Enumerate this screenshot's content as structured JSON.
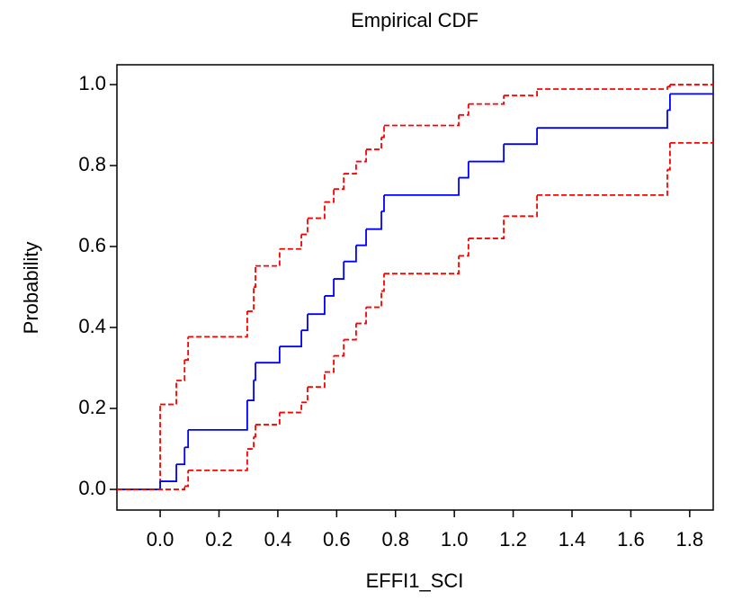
{
  "chart_data": {
    "type": "step",
    "title": "Empirical CDF",
    "x_label": "EFFI1_SCI",
    "y_label": "Probability",
    "xlim": [
      -0.147,
      1.88
    ],
    "ylim": [
      -0.051,
      1.049
    ],
    "xticks": [
      {
        "value": 0,
        "label": "0.0"
      },
      {
        "value": 0.2,
        "label": "0.2"
      },
      {
        "value": 0.4,
        "label": "0.4"
      },
      {
        "value": 0.6,
        "label": "0.6"
      },
      {
        "value": 0.8,
        "label": "0.8"
      },
      {
        "value": 1,
        "label": "1.0"
      },
      {
        "value": 1.2,
        "label": "1.2"
      },
      {
        "value": 1.4,
        "label": "1.4"
      },
      {
        "value": 1.6,
        "label": "1.6"
      },
      {
        "value": 1.8,
        "label": "1.8"
      }
    ],
    "yticks": [
      {
        "value": 0,
        "label": "0.0"
      },
      {
        "value": 0.2,
        "label": "0.2"
      },
      {
        "value": 0.4,
        "label": "0.4"
      },
      {
        "value": 0.6,
        "label": "0.6"
      },
      {
        "value": 0.8,
        "label": "0.8"
      },
      {
        "value": 1,
        "label": "1.0"
      }
    ],
    "series": [
      {
        "color": "#ff0000",
        "dashed": true,
        "x": [
          -0.147,
          0,
          0.055,
          0.083,
          0.095,
          0.296,
          0.318,
          0.324,
          0.406,
          0.48,
          0.501,
          0.559,
          0.59,
          0.624,
          0.666,
          0.7,
          0.752,
          0.761,
          1.015,
          1.048,
          1.168,
          1.281,
          1.724,
          1.733
        ],
        "values": [
          0,
          0.21,
          0.269,
          0.32,
          0.377,
          0.44,
          0.5,
          0.552,
          0.594,
          0.63,
          0.67,
          0.71,
          0.742,
          0.78,
          0.81,
          0.84,
          0.87,
          0.899,
          0.925,
          0.952,
          0.973,
          0.989,
          0.995,
          1.0
        ]
      },
      {
        "color": "#0000ff",
        "dashed": false,
        "x": [
          -0.147,
          0,
          0.055,
          0.083,
          0.095,
          0.296,
          0.318,
          0.324,
          0.406,
          0.48,
          0.501,
          0.559,
          0.59,
          0.624,
          0.666,
          0.7,
          0.752,
          0.761,
          1.015,
          1.048,
          1.168,
          1.281,
          1.724,
          1.733
        ],
        "values": [
          0,
          0.02,
          0.062,
          0.104,
          0.147,
          0.22,
          0.27,
          0.313,
          0.353,
          0.393,
          0.433,
          0.478,
          0.52,
          0.563,
          0.603,
          0.643,
          0.687,
          0.727,
          0.77,
          0.81,
          0.853,
          0.893,
          0.937,
          0.977
        ]
      },
      {
        "color": "#ff0000",
        "dashed": true,
        "x": [
          -0.147,
          0.083,
          0.095,
          0.296,
          0.318,
          0.324,
          0.406,
          0.48,
          0.501,
          0.559,
          0.59,
          0.624,
          0.666,
          0.7,
          0.752,
          0.761,
          1.015,
          1.048,
          1.168,
          1.281,
          1.724,
          1.733
        ],
        "values": [
          0,
          0.008,
          0.047,
          0.1,
          0.13,
          0.16,
          0.19,
          0.215,
          0.253,
          0.29,
          0.33,
          0.37,
          0.41,
          0.45,
          0.49,
          0.533,
          0.577,
          0.62,
          0.675,
          0.727,
          0.79,
          0.856
        ]
      }
    ]
  }
}
